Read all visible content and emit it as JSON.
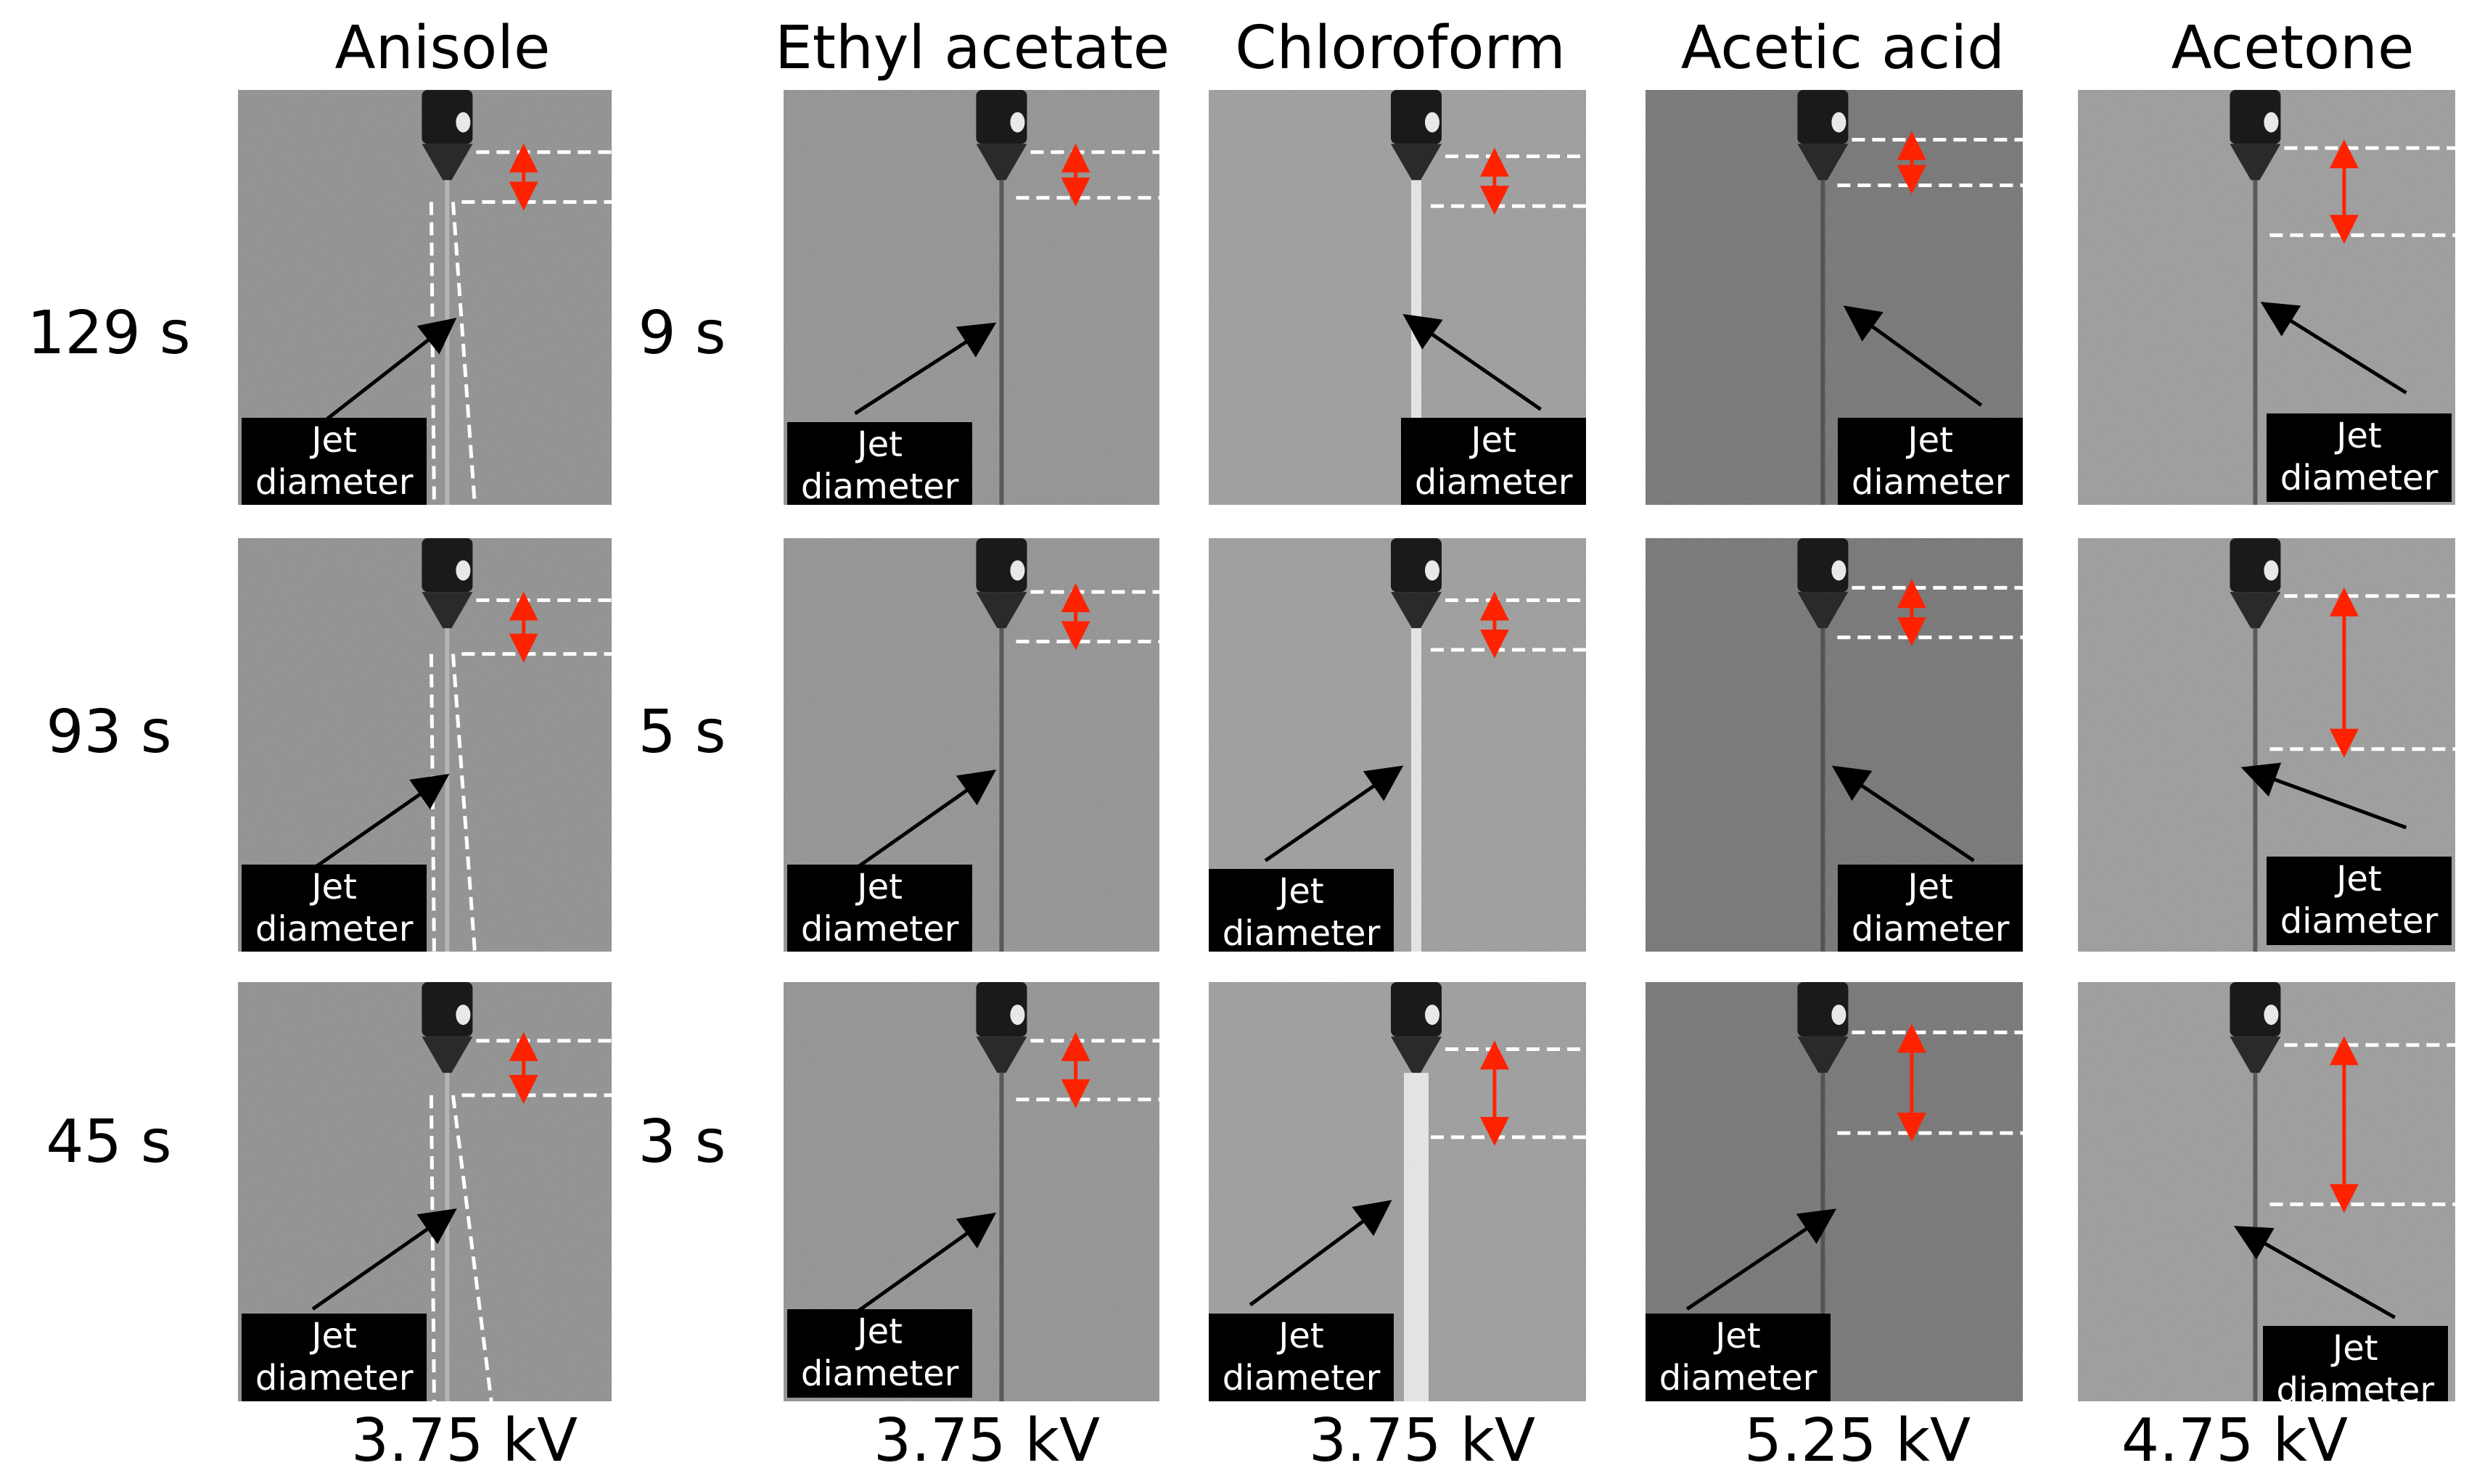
{
  "columns": [
    {
      "solvent": "Anisole",
      "voltage": "3.75 kV",
      "bg": "#8c8c8c"
    },
    {
      "solvent": "Ethyl acetate",
      "voltage": "3.75 kV",
      "bg": "#8f8f8f"
    },
    {
      "solvent": "Chloroform",
      "voltage": "3.75 kV",
      "bg": "#9a9a9a"
    },
    {
      "solvent": "Acetic acid",
      "voltage": "5.25 kV",
      "bg": "#6e6e6e"
    },
    {
      "solvent": "Acetone",
      "voltage": "4.75 kV",
      "bg": "#999999"
    }
  ],
  "rows": [
    {
      "time_left": "129 s",
      "time_mid": "9 s"
    },
    {
      "time_left": "93 s",
      "time_mid": "5 s"
    },
    {
      "time_left": "45 s",
      "time_mid": "3 s"
    }
  ],
  "jet_label": {
    "line1": "Jet",
    "line2": "diameter"
  },
  "colors": {
    "arrow": "#000000",
    "red_arrow": "#ff2200",
    "dashes": "#ffffff",
    "label_bg": "#000000"
  }
}
